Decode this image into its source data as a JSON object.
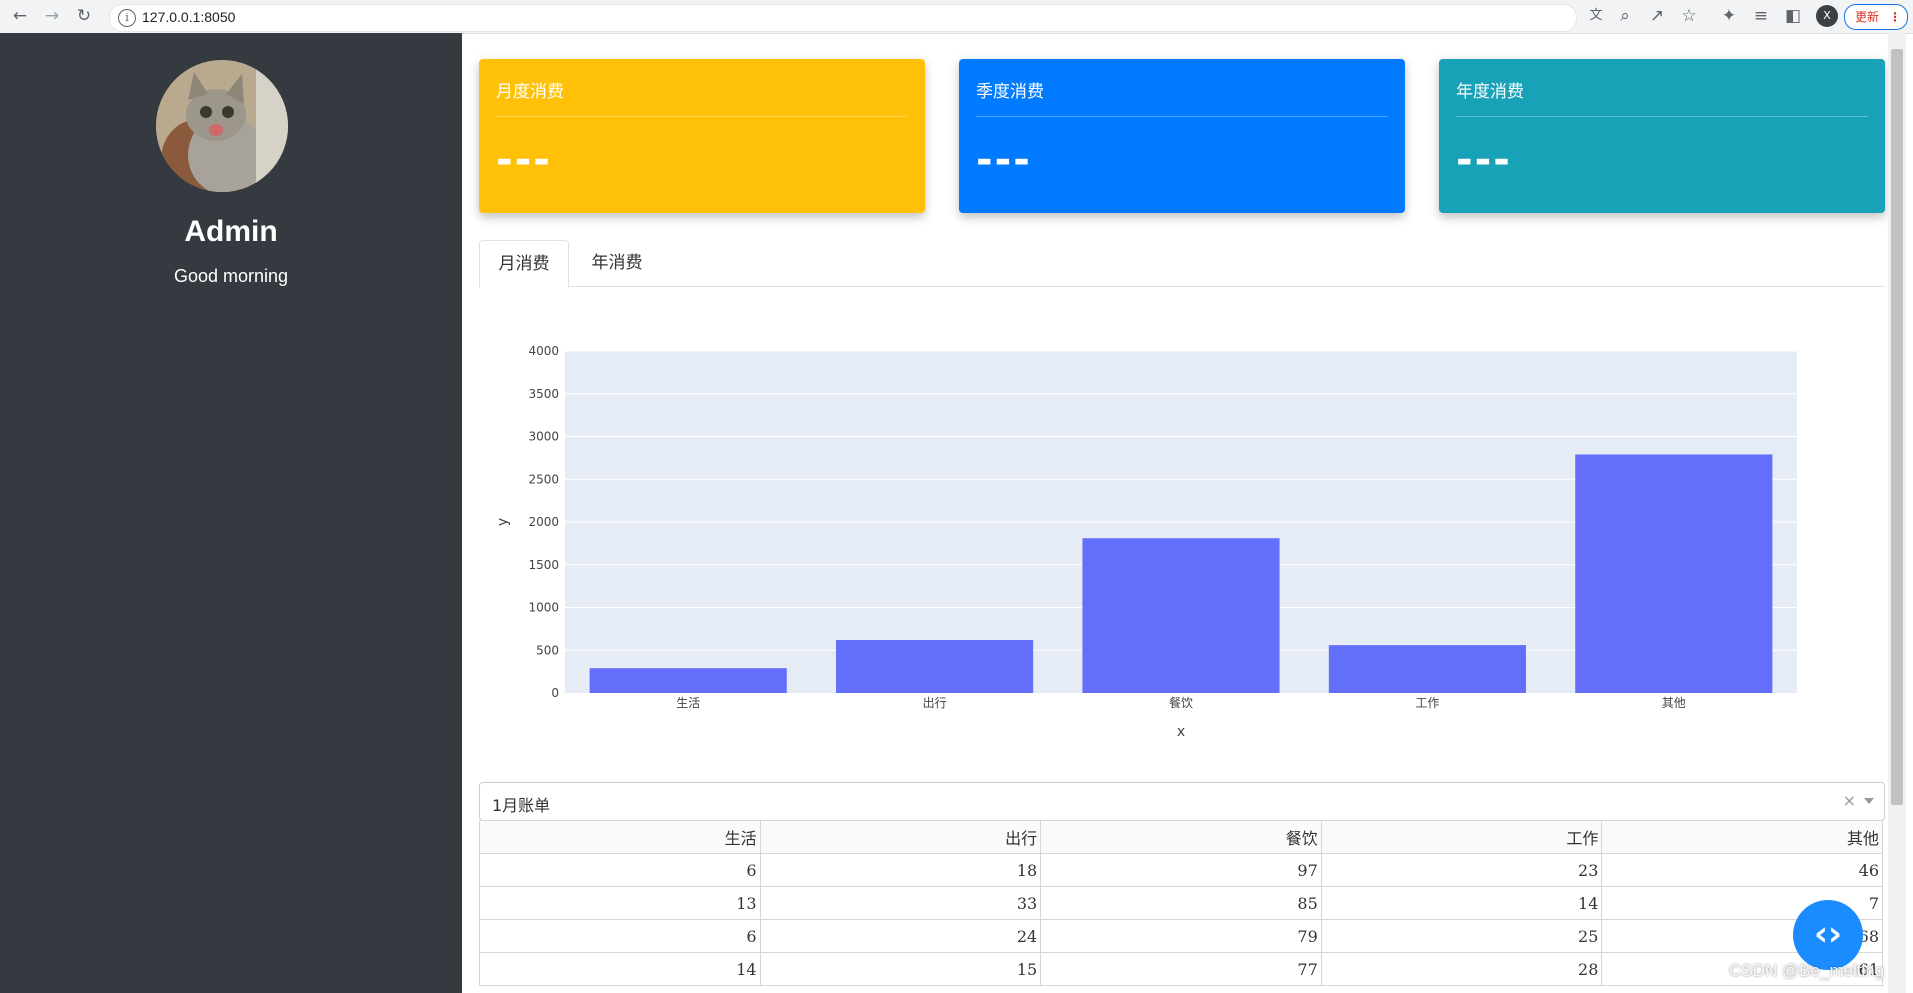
{
  "browser": {
    "url": "127.0.0.1:8050",
    "profile_initial": "X",
    "update_label": "更新"
  },
  "sidebar": {
    "name": "Admin",
    "greeting": "Good morning"
  },
  "cards": [
    {
      "title": "月度消费",
      "value": "---",
      "color": "#ffc107"
    },
    {
      "title": "季度消费",
      "value": "---",
      "color": "#007bff"
    },
    {
      "title": "年度消费",
      "value": "---",
      "color": "#17a2b8"
    }
  ],
  "tabs": [
    {
      "label": "月消费",
      "active": true
    },
    {
      "label": "年消费",
      "active": false
    }
  ],
  "chart_data": {
    "type": "bar",
    "categories": [
      "生活",
      "出行",
      "餐饮",
      "工作",
      "其他"
    ],
    "values": [
      290,
      620,
      1810,
      560,
      2790
    ],
    "xlabel": "x",
    "ylabel": "y",
    "ylim": [
      0,
      4000
    ],
    "yticks": [
      0,
      500,
      1000,
      1500,
      2000,
      2500,
      3000,
      3500,
      4000
    ],
    "bar_color": "#636efa",
    "plot_bg": "#e5ecf6",
    "grid": true
  },
  "dropdown": {
    "value": "1月账单",
    "clear": "×"
  },
  "table": {
    "headers": [
      "生活",
      "出行",
      "餐饮",
      "工作",
      "其他"
    ],
    "rows": [
      [
        "6",
        "18",
        "97",
        "23",
        "46"
      ],
      [
        "13",
        "33",
        "85",
        "14",
        "7"
      ],
      [
        "6",
        "24",
        "79",
        "25",
        "68"
      ],
      [
        "14",
        "15",
        "77",
        "28",
        "61"
      ]
    ]
  },
  "watermark": "CSDN @Be_melting"
}
